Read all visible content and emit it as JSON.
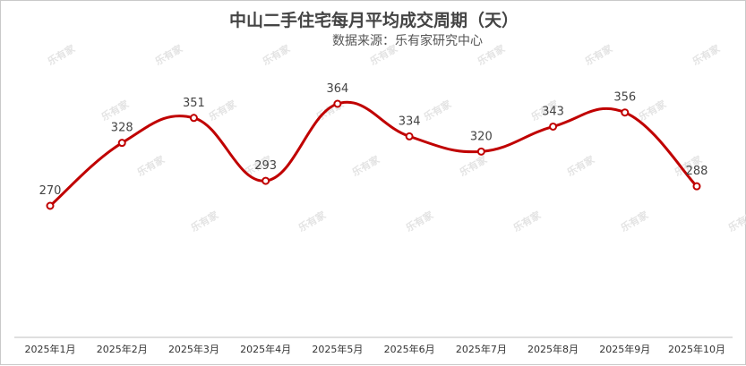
{
  "chart_data": {
    "type": "line",
    "title": "中山二手住宅每月平均成交周期（天）",
    "subtitle": "数据来源：乐有家研究中心",
    "watermark": "乐有家",
    "categories": [
      "2025年1月",
      "2025年2月",
      "2025年3月",
      "2025年4月",
      "2025年5月",
      "2025年6月",
      "2025年7月",
      "2025年8月",
      "2025年9月",
      "2025年10月"
    ],
    "values": [
      270,
      328,
      351,
      293,
      364,
      334,
      320,
      343,
      356,
      288
    ],
    "smooth": true,
    "data_labels": true,
    "grid": false,
    "legend": "none",
    "line_color": "#c00000",
    "marker_fill": "#ffffff"
  }
}
